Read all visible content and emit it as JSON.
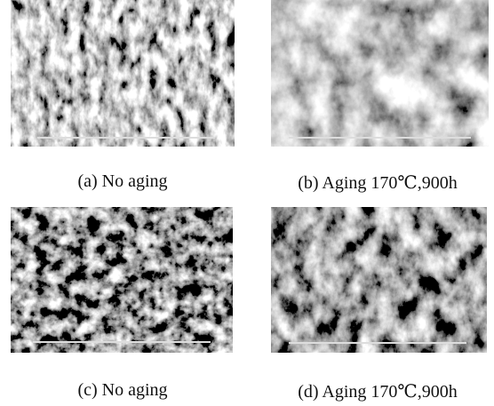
{
  "figure": {
    "panels": [
      {
        "caption": "(a) No aging"
      },
      {
        "caption": "(b) Aging 170℃,900h"
      },
      {
        "caption": "(c) No aging"
      },
      {
        "caption": "(d) Aging 170℃,900h"
      }
    ]
  }
}
